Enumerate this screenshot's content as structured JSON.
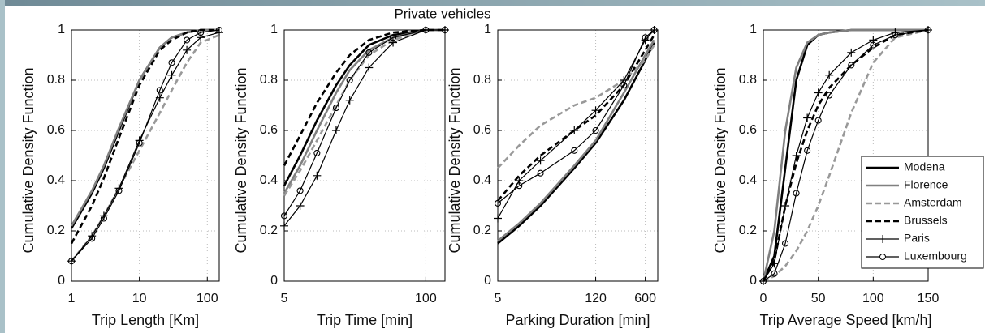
{
  "title": "Private vehicles",
  "chart_data": [
    {
      "type": "line",
      "xlabel": "Trip Length   [Km]",
      "ylabel": "Cumulative Density Function",
      "xscale": "log",
      "xlim": [
        1,
        150
      ],
      "xticks": [
        1,
        10,
        100
      ],
      "ylim": [
        0,
        1
      ],
      "yticks": [
        0,
        0.2,
        0.4,
        0.6,
        0.8,
        1
      ],
      "grid": true,
      "x": [
        1,
        2,
        3,
        5,
        10,
        20,
        30,
        50,
        80,
        150
      ],
      "series": [
        {
          "color": "#000000",
          "dashed": false,
          "marker": "none",
          "values": [
            0.21,
            0.35,
            0.45,
            0.6,
            0.8,
            0.93,
            0.97,
            0.99,
            1,
            1
          ]
        },
        {
          "color": "#808080",
          "dashed": false,
          "marker": "none",
          "values": [
            0.22,
            0.36,
            0.46,
            0.61,
            0.8,
            0.93,
            0.97,
            0.99,
            1,
            1
          ]
        },
        {
          "color": "#999999",
          "dashed": true,
          "marker": "none",
          "values": [
            0.08,
            0.18,
            0.26,
            0.37,
            0.52,
            0.67,
            0.76,
            0.87,
            0.95,
            0.98
          ]
        },
        {
          "color": "#000000",
          "dashed": true,
          "marker": "none",
          "values": [
            0.15,
            0.3,
            0.41,
            0.57,
            0.78,
            0.92,
            0.96,
            0.99,
            1,
            1
          ]
        },
        {
          "color": "#000000",
          "dashed": false,
          "marker": "plus",
          "values": [
            0.08,
            0.18,
            0.26,
            0.37,
            0.56,
            0.73,
            0.82,
            0.92,
            0.97,
            0.99
          ]
        },
        {
          "color": "#000000",
          "dashed": false,
          "marker": "circle",
          "values": [
            0.08,
            0.17,
            0.25,
            0.36,
            0.55,
            0.76,
            0.87,
            0.96,
            0.99,
            1
          ]
        }
      ]
    },
    {
      "type": "line",
      "xlabel": "Trip Time   [min]",
      "ylabel": "Cumulative Density Function",
      "xscale": "log",
      "xlim": [
        5,
        150
      ],
      "xticks": [
        5,
        100
      ],
      "ylim": [
        0,
        1
      ],
      "yticks": [
        0,
        0.2,
        0.4,
        0.6,
        0.8,
        1
      ],
      "grid": true,
      "x": [
        5,
        7,
        10,
        15,
        20,
        30,
        50,
        100,
        150
      ],
      "series": [
        {
          "color": "#000000",
          "dashed": false,
          "marker": "none",
          "values": [
            0.38,
            0.5,
            0.64,
            0.78,
            0.86,
            0.94,
            0.98,
            1,
            1
          ]
        },
        {
          "color": "#808080",
          "dashed": false,
          "marker": "none",
          "values": [
            0.35,
            0.46,
            0.6,
            0.75,
            0.84,
            0.92,
            0.97,
            1,
            1
          ]
        },
        {
          "color": "#999999",
          "dashed": true,
          "marker": "none",
          "values": [
            0.34,
            0.44,
            0.56,
            0.7,
            0.8,
            0.9,
            0.96,
            1,
            1
          ]
        },
        {
          "color": "#000000",
          "dashed": true,
          "marker": "none",
          "values": [
            0.46,
            0.58,
            0.71,
            0.83,
            0.9,
            0.96,
            0.99,
            1,
            1
          ]
        },
        {
          "color": "#000000",
          "dashed": false,
          "marker": "plus",
          "values": [
            0.22,
            0.3,
            0.42,
            0.6,
            0.72,
            0.85,
            0.95,
            1,
            1
          ]
        },
        {
          "color": "#000000",
          "dashed": false,
          "marker": "circle",
          "values": [
            0.26,
            0.36,
            0.51,
            0.69,
            0.8,
            0.91,
            0.97,
            1,
            1
          ]
        }
      ]
    },
    {
      "type": "line",
      "xlabel": "Parking Duration   [min]",
      "ylabel": "Cumulative Density Function",
      "xscale": "log",
      "xlim": [
        5,
        900
      ],
      "xticks": [
        5,
        120,
        600
      ],
      "ylim": [
        0,
        1
      ],
      "yticks": [
        0,
        0.2,
        0.4,
        0.6,
        0.8,
        1
      ],
      "grid": true,
      "x": [
        5,
        10,
        20,
        60,
        120,
        300,
        600,
        800
      ],
      "series": [
        {
          "color": "#000000",
          "dashed": false,
          "marker": "none",
          "values": [
            0.15,
            0.22,
            0.3,
            0.45,
            0.55,
            0.72,
            0.88,
            0.95
          ]
        },
        {
          "color": "#808080",
          "dashed": false,
          "marker": "none",
          "values": [
            0.16,
            0.23,
            0.31,
            0.46,
            0.56,
            0.75,
            0.9,
            0.96
          ]
        },
        {
          "color": "#999999",
          "dashed": true,
          "marker": "none",
          "values": [
            0.45,
            0.54,
            0.62,
            0.7,
            0.73,
            0.8,
            0.88,
            0.94
          ]
        },
        {
          "color": "#000000",
          "dashed": true,
          "marker": "none",
          "values": [
            0.32,
            0.42,
            0.5,
            0.6,
            0.66,
            0.78,
            0.92,
            0.98
          ]
        },
        {
          "color": "#000000",
          "dashed": false,
          "marker": "plus",
          "values": [
            0.25,
            0.4,
            0.48,
            0.6,
            0.68,
            0.8,
            0.96,
            1
          ]
        },
        {
          "color": "#000000",
          "dashed": false,
          "marker": "circle",
          "values": [
            0.31,
            0.38,
            0.43,
            0.52,
            0.6,
            0.78,
            0.97,
            1
          ]
        }
      ]
    },
    {
      "type": "line",
      "xlabel": "Trip Average Speed   [km/h]",
      "ylabel": "Cumulative Density Function",
      "xscale": "linear",
      "xlim": [
        0,
        150
      ],
      "xticks": [
        0,
        50,
        100,
        150
      ],
      "ylim": [
        0,
        1
      ],
      "yticks": [
        0,
        0.2,
        0.4,
        0.6,
        0.8,
        1
      ],
      "grid": true,
      "legend": "lower right",
      "x": [
        0,
        10,
        20,
        30,
        40,
        50,
        60,
        80,
        100,
        120,
        150
      ],
      "series": [
        {
          "name": "Modena",
          "color": "#000000",
          "dashed": false,
          "marker": "none",
          "values": [
            0,
            0.1,
            0.45,
            0.8,
            0.94,
            0.98,
            0.99,
            1,
            1,
            1,
            1
          ]
        },
        {
          "name": "Florence",
          "color": "#808080",
          "dashed": false,
          "marker": "none",
          "values": [
            0,
            0.2,
            0.6,
            0.85,
            0.95,
            0.98,
            0.99,
            1,
            1,
            1,
            1
          ]
        },
        {
          "name": "Amsterdam",
          "color": "#999999",
          "dashed": true,
          "marker": "none",
          "values": [
            0,
            0.02,
            0.06,
            0.12,
            0.2,
            0.3,
            0.42,
            0.67,
            0.87,
            0.97,
            1
          ]
        },
        {
          "name": "Brussels",
          "color": "#000000",
          "dashed": true,
          "marker": "none",
          "values": [
            0,
            0.08,
            0.3,
            0.47,
            0.6,
            0.7,
            0.77,
            0.86,
            0.93,
            0.98,
            1
          ]
        },
        {
          "name": "Paris",
          "color": "#000000",
          "dashed": false,
          "marker": "plus",
          "values": [
            0,
            0.07,
            0.3,
            0.5,
            0.65,
            0.75,
            0.82,
            0.91,
            0.96,
            0.99,
            1
          ]
        },
        {
          "name": "Luxembourg",
          "color": "#000000",
          "dashed": false,
          "marker": "circle",
          "values": [
            0,
            0.03,
            0.15,
            0.35,
            0.52,
            0.64,
            0.74,
            0.86,
            0.94,
            0.98,
            1
          ]
        }
      ]
    }
  ]
}
